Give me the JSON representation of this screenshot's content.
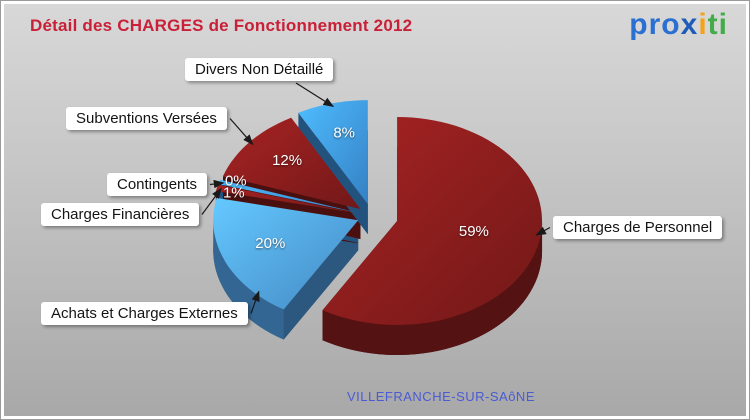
{
  "header": {
    "title": "Détail des CHARGES de Fonctionnement 2012",
    "color": "#c92038"
  },
  "brand": {
    "name": "proxiti",
    "parts": [
      {
        "text": "pr",
        "color": "#2a6fd2"
      },
      {
        "text": "o",
        "color": "#2a6fd2"
      },
      {
        "text": "x",
        "color": "#1d5cb8"
      },
      {
        "text": "i",
        "color": "#f5a216"
      },
      {
        "text": "t",
        "color": "#43ac4a"
      },
      {
        "text": "i",
        "color": "#43ac4a"
      }
    ]
  },
  "footer": {
    "location": "VILLEFRANCHE-SUR-SAôNE",
    "color": "#4a5bd4"
  },
  "chart_data": {
    "type": "pie",
    "effect": "3d-exploded",
    "title": "Détail des CHARGES de Fonctionnement 2012",
    "unit": "%",
    "value_labels": "percent-on-slice",
    "legend_position": "callouts-with-arrows",
    "start_angle_deg": -90,
    "direction": "clockwise",
    "labels": [
      "Charges de Personnel",
      "Achats et Charges Externes",
      "Charges Financières",
      "Contingents",
      "Subventions Versées",
      "Divers Non Détaillé"
    ],
    "values": [
      59,
      20,
      1,
      0,
      12,
      8
    ],
    "colors": [
      "#8e1e1e",
      "#55aaf5",
      "#8e1e1e",
      "#42a0f5",
      "#8e1e1e",
      "#42a0f5"
    ],
    "percent_text_color": "#ffffff"
  }
}
